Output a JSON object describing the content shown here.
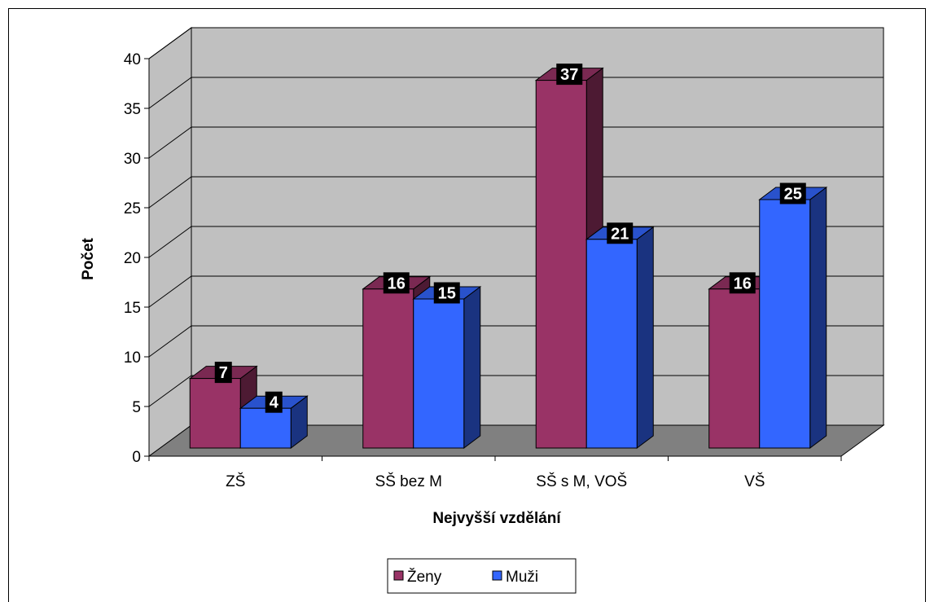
{
  "chart_data": {
    "type": "bar",
    "title": "",
    "xlabel": "Nejvyšší vzdělání",
    "ylabel": "Počet",
    "categories": [
      "ZŠ",
      "SŠ bez M",
      "SŠ s M, VOŠ",
      "VŠ"
    ],
    "series": [
      {
        "name": "Ženy",
        "values": [
          7,
          16,
          37,
          16
        ],
        "color": "#993366",
        "side_color": "#4d1a33",
        "top_color": "#7a2952"
      },
      {
        "name": "Muži",
        "values": [
          4,
          15,
          21,
          25
        ],
        "color": "#3366ff",
        "side_color": "#1a3380",
        "top_color": "#2952cc"
      }
    ],
    "ylim": [
      0,
      40
    ],
    "yticks": [
      "0",
      "5",
      "10",
      "15",
      "20",
      "25",
      "30",
      "35",
      "40"
    ],
    "grid": true,
    "legend_position": "bottom",
    "wall_color": "#c0c0c0",
    "floor_color": "#808080"
  }
}
